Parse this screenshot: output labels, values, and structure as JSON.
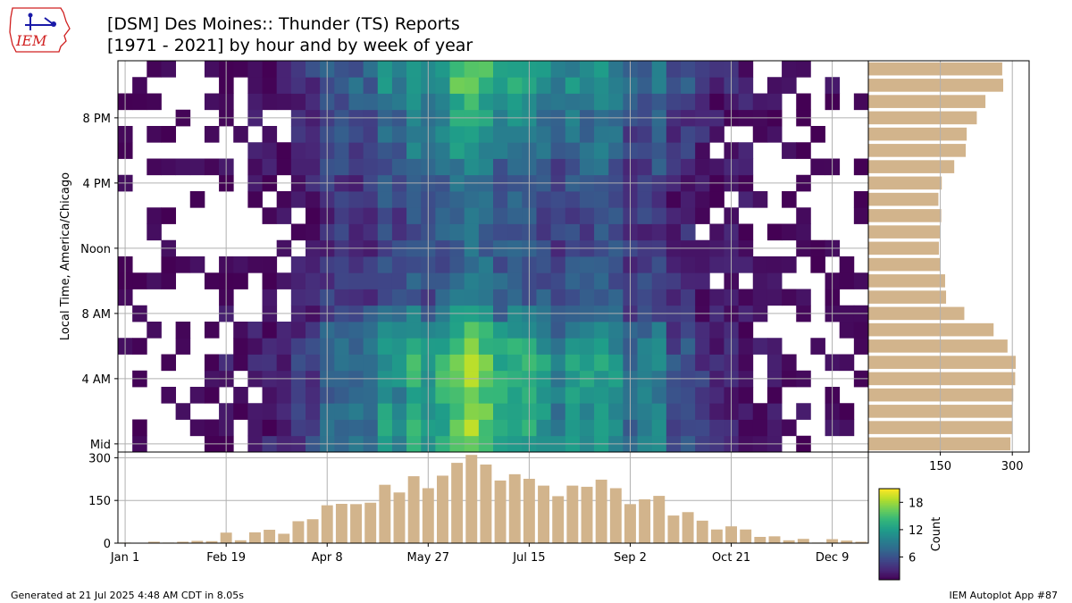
{
  "header": {
    "logo_text": "IEM",
    "title_line1": "[DSM] Des Moines:: Thunder (TS) Reports",
    "title_line2": "[1971 - 2021] by hour and by week of year"
  },
  "footer": {
    "generated": "Generated at 21 Jul 2025 4:48 AM CDT in 8.05s",
    "app": "IEM Autoplot App #87"
  },
  "colors": {
    "bar_fill": "#d2b48c",
    "grid": "#b0b0b0",
    "colormap": [
      "#440154",
      "#482878",
      "#3e4989",
      "#31688e",
      "#26828e",
      "#1f9e89",
      "#35b779",
      "#6ece58",
      "#b5de2b",
      "#fde725"
    ]
  },
  "chart_data": [
    {
      "type": "heatmap",
      "ylabel": "Local Time, America/Chicago",
      "x_ticks": [
        "Jan 1",
        "Feb 19",
        "Apr 8",
        "May 27",
        "Jul 15",
        "Sep 2",
        "Oct 21",
        "Dec 9"
      ],
      "y_ticks": [
        "Mid",
        "4 AM",
        "8 AM",
        "Noon",
        "4 PM",
        "8 PM"
      ],
      "colorbar": {
        "label": "Count",
        "ticks": [
          6,
          12,
          18
        ],
        "range": [
          1,
          21
        ]
      },
      "x_weeks": 52,
      "y_hours": 24,
      "hourly_profile": [
        296,
        300,
        300,
        302,
        306,
        307,
        290,
        261,
        200,
        162,
        160,
        149,
        147,
        149,
        152,
        146,
        153,
        179,
        203,
        205,
        226,
        244,
        281,
        279
      ],
      "note_hourly_profile": "total reports per hour, drawn as the right-hand bar panel; index 0 = midnight"
    },
    {
      "type": "bar",
      "categories_note": "week of year 1-52",
      "values": [
        2,
        1,
        5,
        2,
        5,
        8,
        7,
        37,
        10,
        38,
        47,
        33,
        77,
        84,
        133,
        138,
        137,
        142,
        205,
        178,
        235,
        193,
        237,
        282,
        310,
        276,
        220,
        242,
        226,
        202,
        165,
        202,
        198,
        223,
        193,
        137,
        154,
        166,
        97,
        109,
        79,
        48,
        59,
        48,
        22,
        24,
        10,
        15,
        2,
        14,
        9,
        5
      ],
      "ylim": [
        0,
        320
      ],
      "y_ticks": [
        0,
        150,
        300
      ]
    },
    {
      "type": "bar",
      "orientation": "horizontal",
      "x_ticks": [
        150,
        300
      ],
      "xlim": [
        0,
        335
      ]
    }
  ]
}
